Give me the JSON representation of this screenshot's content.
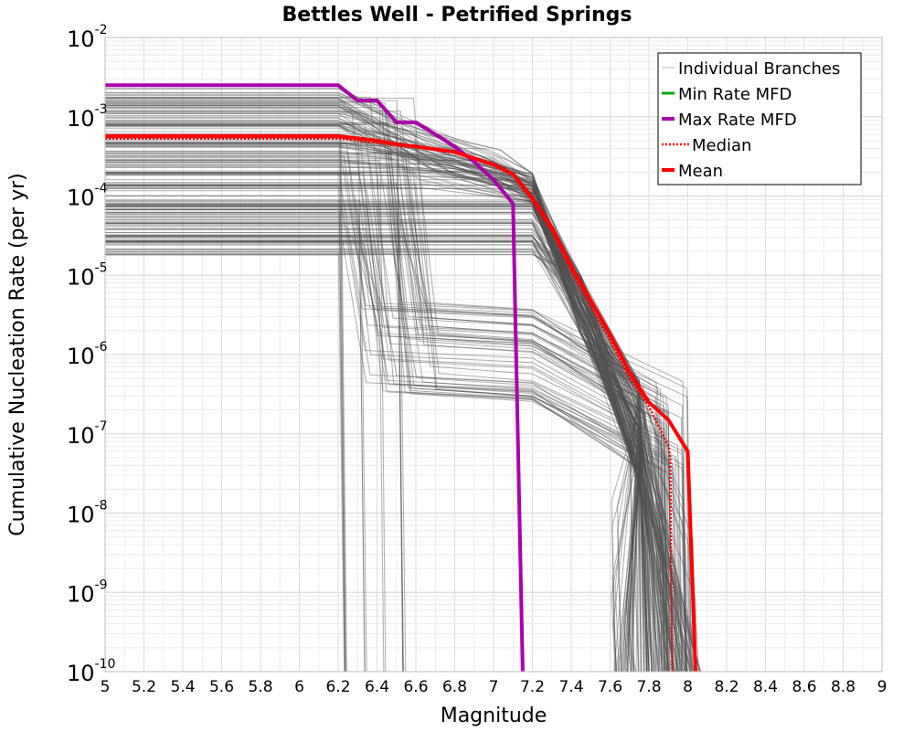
{
  "chart_data": {
    "type": "line",
    "title": "Bettles Well - Petrified Springs",
    "xlabel": "Magnitude",
    "ylabel": "Cumulative Nucleation Rate (per yr)",
    "xlim": [
      5,
      9
    ],
    "ylim_log10": [
      -10,
      -2
    ],
    "y_scale": "log",
    "grid": true,
    "legend_position": "top-right",
    "x_ticks": [
      "5",
      "5.2",
      "5.4",
      "5.6",
      "5.8",
      "6",
      "6.2",
      "6.4",
      "6.6",
      "6.8",
      "7",
      "7.2",
      "7.4",
      "7.6",
      "7.8",
      "8",
      "8.2",
      "8.4",
      "8.6",
      "8.8",
      "9"
    ],
    "y_ticks": [
      {
        "base": "10",
        "exp": "-10",
        "value": -10
      },
      {
        "base": "10",
        "exp": "-9",
        "value": -9
      },
      {
        "base": "10",
        "exp": "-8",
        "value": -8
      },
      {
        "base": "10",
        "exp": "-7",
        "value": -7
      },
      {
        "base": "10",
        "exp": "-6",
        "value": -6
      },
      {
        "base": "10",
        "exp": "-5",
        "value": -5
      },
      {
        "base": "10",
        "exp": "-4",
        "value": -4
      },
      {
        "base": "10",
        "exp": "-3",
        "value": -3
      },
      {
        "base": "10",
        "exp": "-2",
        "value": -2
      }
    ],
    "series": [
      {
        "name": "Individual Branches",
        "color": "#4d4d4d",
        "style": "thin-translucent",
        "approximate_envelope": "many branch curves between ~1.6e-5 and ~2.5e-3 at M5, falling off between M6.2 and M8.05"
      },
      {
        "name": "Min Rate MFD",
        "color": "#00aa00",
        "style": "solid",
        "x": [],
        "y": []
      },
      {
        "name": "Max Rate MFD",
        "color": "#aa00aa",
        "style": "solid-thick",
        "x": [
          5.0,
          6.2,
          6.3,
          6.4,
          6.5,
          6.6,
          6.7,
          6.8,
          6.9,
          7.0,
          7.1,
          7.15
        ],
        "y": [
          0.0025,
          0.0025,
          0.0016,
          0.0016,
          0.00085,
          0.00085,
          0.0006,
          0.00042,
          0.00027,
          0.00016,
          8e-05,
          1e-10
        ]
      },
      {
        "name": "Median",
        "color": "#ff0000",
        "style": "dotted",
        "x": [
          5.0,
          6.2,
          6.4,
          6.5,
          6.6,
          6.8,
          6.9,
          7.0,
          7.1,
          7.2,
          7.3,
          7.4,
          7.5,
          7.6,
          7.7,
          7.8,
          7.9,
          7.91,
          7.92
        ],
        "y": [
          0.00053,
          0.00053,
          0.00047,
          0.00043,
          0.00041,
          0.00035,
          0.00029,
          0.00024,
          0.00018,
          8.5e-05,
          3.5e-05,
          1.1e-05,
          4e-06,
          1.5e-06,
          5e-07,
          2.2e-07,
          7e-08,
          5e-08,
          1e-10
        ]
      },
      {
        "name": "Mean",
        "color": "#ff0000",
        "style": "solid-thick",
        "x": [
          5.0,
          6.2,
          6.4,
          6.5,
          6.6,
          6.8,
          6.9,
          7.0,
          7.1,
          7.2,
          7.3,
          7.4,
          7.5,
          7.6,
          7.7,
          7.8,
          7.9,
          8.0,
          8.04
        ],
        "y": [
          0.00057,
          0.00057,
          0.0005,
          0.00045,
          0.00042,
          0.00036,
          0.0003,
          0.00025,
          0.00019,
          9.5e-05,
          4e-05,
          1.3e-05,
          4.8e-06,
          1.8e-06,
          6e-07,
          2.5e-07,
          1.5e-07,
          6e-08,
          1e-10
        ]
      }
    ]
  }
}
